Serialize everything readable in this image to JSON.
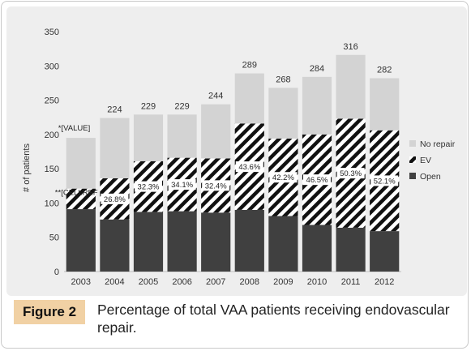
{
  "chart_data": {
    "type": "bar",
    "stacked": true,
    "categories": [
      "2003",
      "2004",
      "2005",
      "2006",
      "2007",
      "2008",
      "2009",
      "2010",
      "2011",
      "2012"
    ],
    "series": [
      {
        "name": "Open",
        "values": [
          91,
          76,
          87,
          88,
          86,
          90,
          81,
          68,
          64,
          59
        ],
        "color": "#404040",
        "pattern": "solid"
      },
      {
        "name": "EV",
        "values": [
          30,
          60,
          74,
          78,
          79,
          126,
          113,
          132,
          159,
          147
        ],
        "color": "#111111",
        "pattern": "diagonal-stripes"
      },
      {
        "name": "No repair",
        "values": [
          74,
          88,
          68,
          63,
          79,
          73,
          74,
          84,
          93,
          76
        ],
        "color": "#d3d3d3",
        "pattern": "solid"
      }
    ],
    "totals": [
      "",
      "224",
      "229",
      "229",
      "244",
      "289",
      "268",
      "284",
      "316",
      "282"
    ],
    "ev_percent_labels": [
      "",
      "26.8%",
      "32.3%",
      "34.1%",
      "32.4%",
      "43.6%",
      "42.2%",
      "46.5%",
      "50.3%",
      "52.1%"
    ],
    "stray_labels": {
      "total_2003": "*[VALUE]",
      "pct_2003": "**[CELLREF"
    },
    "ylabel": "# of patients",
    "xlabel": "",
    "ylim": [
      0,
      350
    ],
    "yticks": [
      0,
      50,
      100,
      150,
      200,
      250,
      300,
      350
    ],
    "grid": false,
    "legend_placement": "right",
    "legend_order": [
      "No repair",
      "EV",
      "Open"
    ]
  },
  "caption": {
    "label": "Figure 2",
    "text": "Percentage of total VAA patients receiving endovascular repair."
  }
}
